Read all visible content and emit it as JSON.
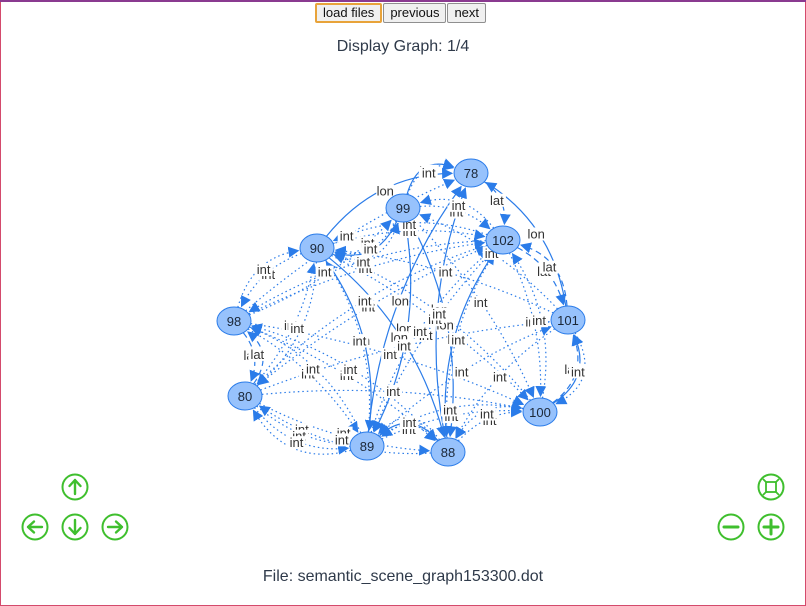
{
  "toolbar": {
    "load_label": "load files",
    "previous_label": "previous",
    "next_label": "next"
  },
  "title": "Display Graph: 1/4",
  "footer": "File: semantic_scene_graph153300.dot",
  "colors": {
    "node_fill": "#97c2fc",
    "node_stroke": "#2b7ce9",
    "edge": "#2b7ce9",
    "nav_green": "#3fbf2e",
    "frame": "#d44a6c"
  },
  "nav_icons": {
    "up": "arrow-up-icon",
    "down": "arrow-down-icon",
    "left": "arrow-left-icon",
    "right": "arrow-right-icon",
    "fit": "zoom-extends-icon",
    "zoom_out": "zoom-out-icon",
    "zoom_in": "zoom-in-icon"
  },
  "graph": {
    "nodes": [
      "78",
      "99",
      "102",
      "90",
      "98",
      "101",
      "80",
      "100",
      "89",
      "88"
    ],
    "edge_labels": [
      "lon",
      "lat",
      "int"
    ],
    "edges": [
      {
        "from": "99",
        "to": "78",
        "label": "lon",
        "style": "solid"
      },
      {
        "from": "90",
        "to": "78",
        "label": "lon",
        "style": "solid"
      },
      {
        "from": "101",
        "to": "78",
        "label": "lon",
        "style": "solid"
      },
      {
        "from": "78",
        "to": "102",
        "label": "lat",
        "style": "dashed"
      },
      {
        "from": "102",
        "to": "101",
        "label": "lat",
        "style": "dashed"
      },
      {
        "from": "101",
        "to": "102",
        "label": "lat",
        "style": "dashed"
      },
      {
        "from": "98",
        "to": "80",
        "label": "lat",
        "style": "dashed"
      },
      {
        "from": "80",
        "to": "98",
        "label": "lat",
        "style": "dashed"
      },
      {
        "from": "100",
        "to": "101",
        "label": "lon",
        "style": "solid"
      },
      {
        "from": "100",
        "to": "101",
        "label": "lat",
        "style": "dashed"
      },
      {
        "from": "90",
        "to": "89",
        "label": "lon",
        "style": "solid"
      },
      {
        "from": "99",
        "to": "89",
        "label": "lon",
        "style": "solid"
      },
      {
        "from": "88",
        "to": "89",
        "label": "lon",
        "style": "solid"
      },
      {
        "from": "99",
        "to": "88",
        "label": "lon",
        "style": "solid"
      },
      {
        "from": "90",
        "to": "88",
        "label": "lon",
        "style": "solid"
      },
      {
        "from": "89",
        "to": "78",
        "label": "lon",
        "style": "solid"
      },
      {
        "from": "88",
        "to": "78",
        "label": "lon",
        "style": "solid"
      },
      {
        "from": "102",
        "to": "88",
        "label": "lon",
        "style": "solid"
      },
      {
        "from": "99",
        "to": "90",
        "label": "lon",
        "style": "solid"
      },
      {
        "from": "90",
        "to": "98",
        "label": "int",
        "style": "dotted"
      },
      {
        "from": "98",
        "to": "90",
        "label": "int",
        "style": "dotted"
      },
      {
        "from": "99",
        "to": "90",
        "label": "int",
        "style": "dotted"
      },
      {
        "from": "90",
        "to": "99",
        "label": "int",
        "style": "dotted"
      },
      {
        "from": "99",
        "to": "78",
        "label": "int",
        "style": "dotted"
      },
      {
        "from": "99",
        "to": "102",
        "label": "int",
        "style": "dotted"
      },
      {
        "from": "90",
        "to": "102",
        "label": "int",
        "style": "dotted"
      },
      {
        "from": "98",
        "to": "99",
        "label": "int",
        "style": "dotted"
      },
      {
        "from": "80",
        "to": "90",
        "label": "int",
        "style": "dotted"
      },
      {
        "from": "80",
        "to": "89",
        "label": "int",
        "style": "dotted"
      },
      {
        "from": "80",
        "to": "88",
        "label": "int",
        "style": "dotted"
      },
      {
        "from": "98",
        "to": "89",
        "label": "int",
        "style": "dotted"
      },
      {
        "from": "98",
        "to": "88",
        "label": "int",
        "style": "dotted"
      },
      {
        "from": "89",
        "to": "100",
        "label": "int",
        "style": "dotted"
      },
      {
        "from": "88",
        "to": "100",
        "label": "int",
        "style": "dotted"
      },
      {
        "from": "100",
        "to": "88",
        "label": "int",
        "style": "dotted"
      },
      {
        "from": "102",
        "to": "100",
        "label": "int",
        "style": "dotted"
      },
      {
        "from": "101",
        "to": "100",
        "label": "int",
        "style": "dotted"
      },
      {
        "from": "101",
        "to": "88",
        "label": "int",
        "style": "dotted"
      },
      {
        "from": "102",
        "to": "89",
        "label": "int",
        "style": "dotted"
      },
      {
        "from": "99",
        "to": "100",
        "label": "int",
        "style": "dotted"
      },
      {
        "from": "90",
        "to": "100",
        "label": "int",
        "style": "dotted"
      },
      {
        "from": "98",
        "to": "100",
        "label": "int",
        "style": "dotted"
      },
      {
        "from": "80",
        "to": "100",
        "label": "int",
        "style": "dotted"
      },
      {
        "from": "89",
        "to": "101",
        "label": "int",
        "style": "dotted"
      },
      {
        "from": "89",
        "to": "102",
        "label": "int",
        "style": "dotted"
      },
      {
        "from": "88",
        "to": "102",
        "label": "int",
        "style": "dotted"
      },
      {
        "from": "80",
        "to": "102",
        "label": "int",
        "style": "dotted"
      },
      {
        "from": "98",
        "to": "102",
        "label": "int",
        "style": "dotted"
      },
      {
        "from": "89",
        "to": "88",
        "label": "int",
        "style": "dotted"
      },
      {
        "from": "88",
        "to": "89",
        "label": "int",
        "style": "dotted"
      },
      {
        "from": "80",
        "to": "89",
        "label": "int",
        "style": "dotted"
      },
      {
        "from": "89",
        "to": "80",
        "label": "int",
        "style": "dotted"
      },
      {
        "from": "88",
        "to": "80",
        "label": "int",
        "style": "dotted"
      },
      {
        "from": "100",
        "to": "89",
        "label": "int",
        "style": "dotted"
      },
      {
        "from": "102",
        "to": "99",
        "label": "int",
        "style": "dotted"
      },
      {
        "from": "102",
        "to": "90",
        "label": "int",
        "style": "dotted"
      },
      {
        "from": "101",
        "to": "99",
        "label": "int",
        "style": "dotted"
      },
      {
        "from": "90",
        "to": "80",
        "label": "int",
        "style": "dotted"
      },
      {
        "from": "98",
        "to": "78",
        "label": "int",
        "style": "dotted"
      },
      {
        "from": "102",
        "to": "98",
        "label": "int",
        "style": "dotted"
      },
      {
        "from": "101",
        "to": "90",
        "label": "int",
        "style": "dotted"
      },
      {
        "from": "100",
        "to": "90",
        "label": "int",
        "style": "dotted"
      },
      {
        "from": "88",
        "to": "98",
        "label": "int",
        "style": "dotted"
      },
      {
        "from": "89",
        "to": "98",
        "label": "int",
        "style": "dotted"
      },
      {
        "from": "89",
        "to": "90",
        "label": "int",
        "style": "dotted"
      },
      {
        "from": "80",
        "to": "101",
        "label": "int",
        "style": "dotted"
      },
      {
        "from": "102",
        "to": "80",
        "label": "int",
        "style": "dotted"
      },
      {
        "from": "100",
        "to": "102",
        "label": "int",
        "style": "dotted"
      }
    ]
  }
}
